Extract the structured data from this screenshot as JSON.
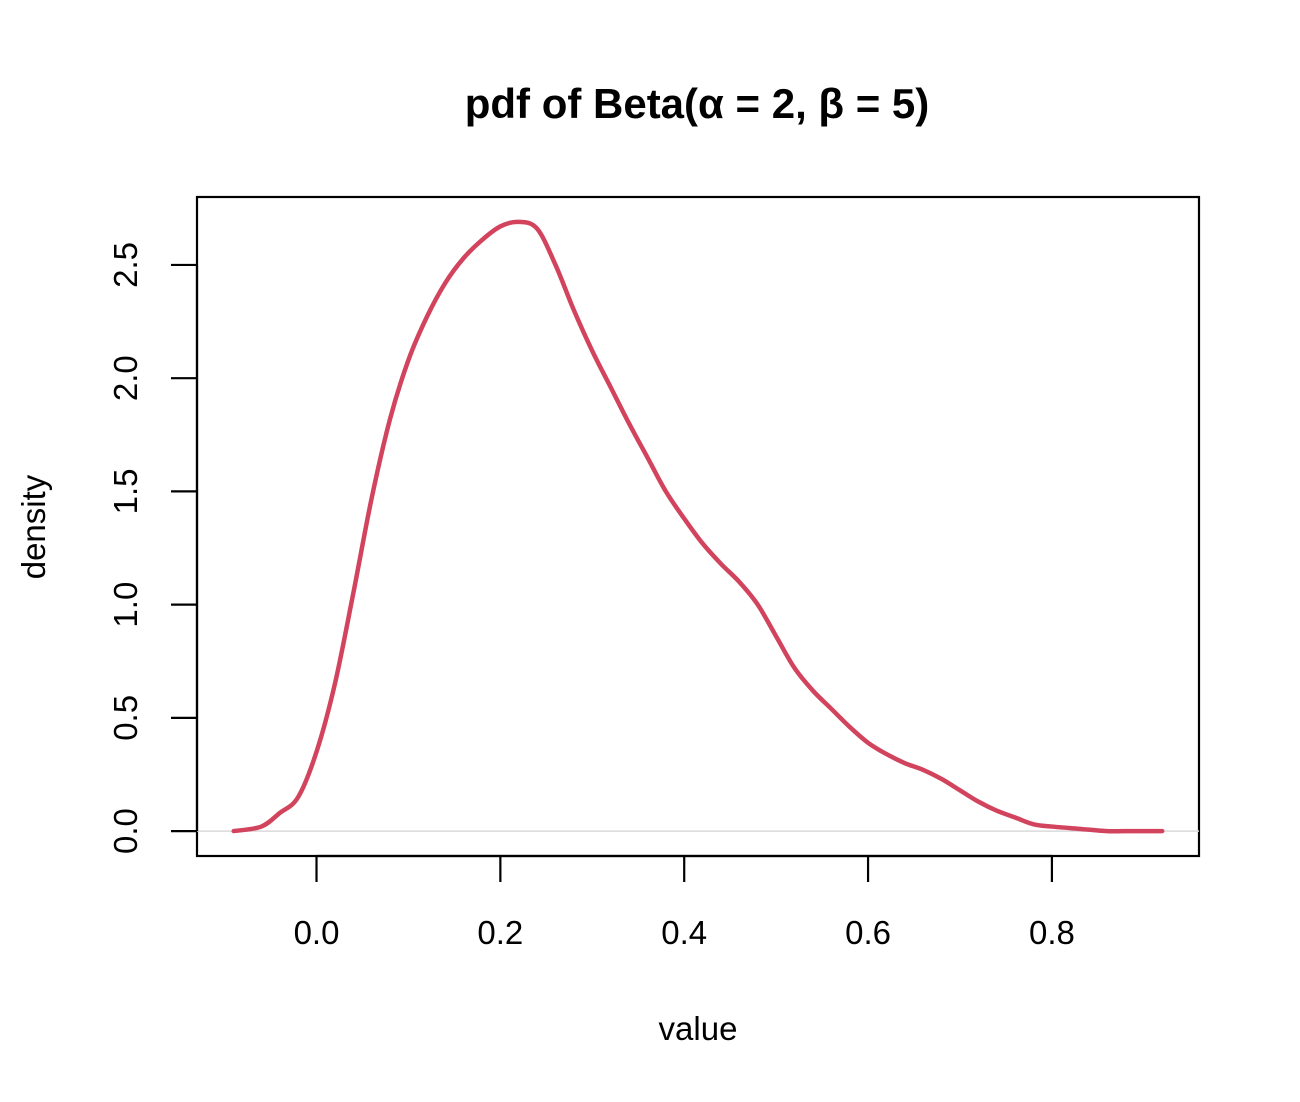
{
  "chart_data": {
    "type": "line",
    "title": "pdf of Beta(α = 2, β = 5)",
    "xlabel": "value",
    "ylabel": "density",
    "xlim": [
      -0.13,
      0.96
    ],
    "ylim": [
      -0.11,
      2.8
    ],
    "x_ticks": [
      "0.0",
      "0.2",
      "0.4",
      "0.6",
      "0.8"
    ],
    "y_ticks": [
      "0.0",
      "0.5",
      "1.0",
      "1.5",
      "2.0",
      "2.5"
    ],
    "grid": false,
    "legend": "none",
    "baseline_y": 0,
    "series": [
      {
        "color": "#D2445E",
        "x": [
          -0.09,
          -0.06,
          -0.04,
          -0.02,
          0.0,
          0.02,
          0.04,
          0.06,
          0.08,
          0.1,
          0.12,
          0.14,
          0.16,
          0.18,
          0.2,
          0.22,
          0.24,
          0.26,
          0.28,
          0.3,
          0.32,
          0.34,
          0.36,
          0.38,
          0.4,
          0.42,
          0.44,
          0.46,
          0.48,
          0.5,
          0.52,
          0.54,
          0.56,
          0.58,
          0.6,
          0.62,
          0.64,
          0.66,
          0.68,
          0.7,
          0.72,
          0.74,
          0.76,
          0.78,
          0.8,
          0.83,
          0.86,
          0.89,
          0.92
        ],
        "y": [
          0.0,
          0.02,
          0.08,
          0.15,
          0.35,
          0.65,
          1.05,
          1.47,
          1.82,
          2.08,
          2.27,
          2.42,
          2.53,
          2.61,
          2.67,
          2.69,
          2.66,
          2.5,
          2.3,
          2.12,
          1.96,
          1.8,
          1.65,
          1.5,
          1.38,
          1.27,
          1.18,
          1.1,
          1.0,
          0.86,
          0.72,
          0.62,
          0.54,
          0.46,
          0.39,
          0.34,
          0.3,
          0.27,
          0.23,
          0.18,
          0.13,
          0.09,
          0.06,
          0.03,
          0.02,
          0.01,
          0.0,
          0.0,
          0.0
        ]
      }
    ]
  },
  "colors": {
    "curve": "#D2445E",
    "baseline": "#D9D9D9",
    "axis": "#000000"
  }
}
